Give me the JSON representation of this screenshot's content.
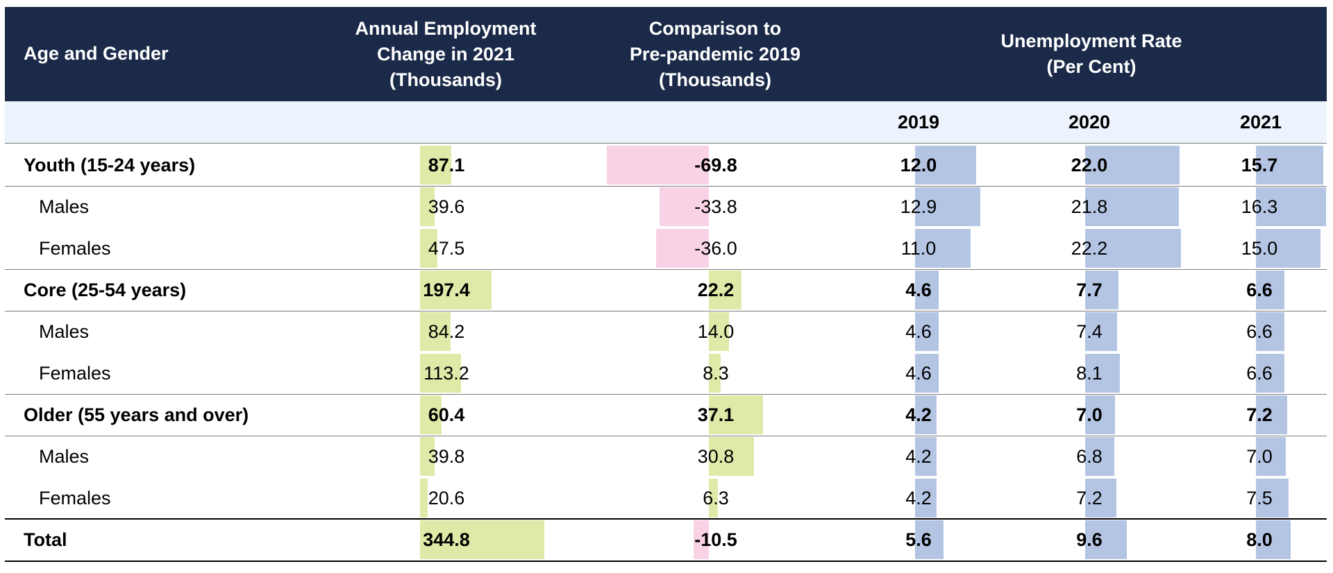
{
  "colors": {
    "header_bg": "#1b2a48",
    "subheader_bg": "#edf3fc",
    "positive_bar": "#dfeaa8",
    "negative_bar": "#f9d2e6",
    "rate_bar": "#b4c5e4"
  },
  "header": {
    "age_gender": "Age and Gender",
    "annual_line1": "Annual Employment",
    "annual_line2": "Change in 2021",
    "annual_line3": "(Thousands)",
    "compare_line1": "Comparison to",
    "compare_line2": "Pre-pandemic 2019",
    "compare_line3": "(Thousands)",
    "unemp_line1": "Unemployment Rate",
    "unemp_line2": "(Per Cent)",
    "years": [
      "2019",
      "2020",
      "2021"
    ]
  },
  "chart_data": {
    "type": "table",
    "columns": [
      "Age and Gender",
      "Annual Employment Change in 2021 (Thousands)",
      "Comparison to Pre-pandemic 2019 (Thousands)",
      "Unemployment Rate 2019 (Per Cent)",
      "Unemployment Rate 2020 (Per Cent)",
      "Unemployment Rate 2021 (Per Cent)"
    ],
    "rows": [
      {
        "label": "Youth (15-24 years)",
        "bold": true,
        "change": "87.1",
        "compare": "-69.8",
        "u2019": "12.0",
        "u2020": "22.0",
        "u2021": "15.7"
      },
      {
        "label": "Males",
        "bold": false,
        "change": "39.6",
        "compare": "-33.8",
        "u2019": "12.9",
        "u2020": "21.8",
        "u2021": "16.3"
      },
      {
        "label": "Females",
        "bold": false,
        "change": "47.5",
        "compare": "-36.0",
        "u2019": "11.0",
        "u2020": "22.2",
        "u2021": "15.0"
      },
      {
        "label": "Core (25-54 years)",
        "bold": true,
        "change": "197.4",
        "compare": "22.2",
        "u2019": "4.6",
        "u2020": "7.7",
        "u2021": "6.6"
      },
      {
        "label": "Males",
        "bold": false,
        "change": "84.2",
        "compare": "14.0",
        "u2019": "4.6",
        "u2020": "7.4",
        "u2021": "6.6"
      },
      {
        "label": "Females",
        "bold": false,
        "change": "113.2",
        "compare": "8.3",
        "u2019": "4.6",
        "u2020": "8.1",
        "u2021": "6.6"
      },
      {
        "label": "Older (55 years and over)",
        "bold": true,
        "change": "60.4",
        "compare": "37.1",
        "u2019": "4.2",
        "u2020": "7.0",
        "u2021": "7.2"
      },
      {
        "label": "Males",
        "bold": false,
        "change": "39.8",
        "compare": "30.8",
        "u2019": "4.2",
        "u2020": "6.8",
        "u2021": "7.0"
      },
      {
        "label": "Females",
        "bold": false,
        "change": "20.6",
        "compare": "6.3",
        "u2019": "4.2",
        "u2020": "7.2",
        "u2021": "7.5"
      },
      {
        "label": "Total",
        "bold": true,
        "change": "344.8",
        "compare": "-10.5",
        "u2019": "5.6",
        "u2020": "9.6",
        "u2021": "8.0"
      }
    ]
  }
}
